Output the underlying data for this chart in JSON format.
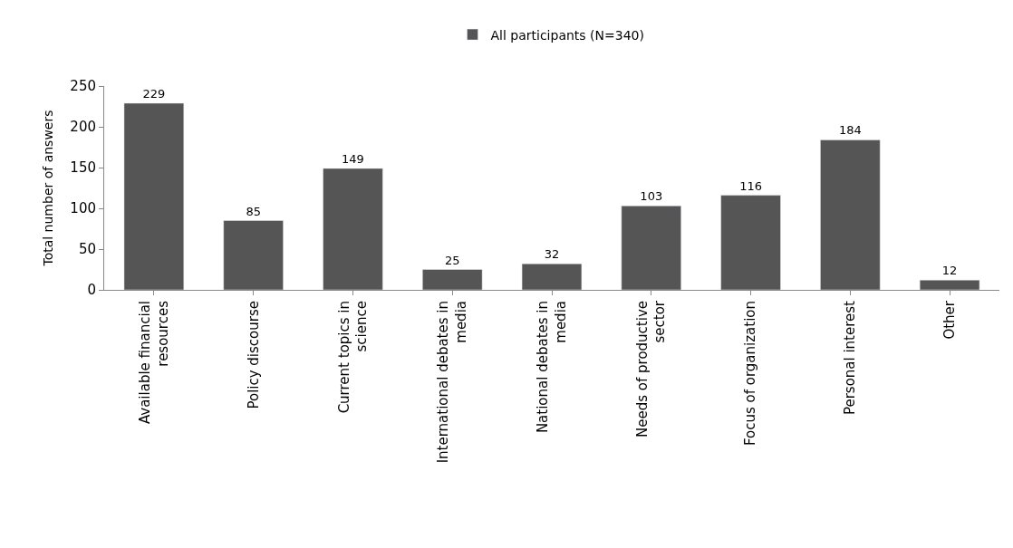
{
  "chart_data": {
    "type": "bar",
    "ylabel": "Total number of answers",
    "categories": [
      "Available financial resources",
      "Policy discourse",
      "Current topics in science",
      "International debates in media",
      "National debates in media",
      "Needs of productive sector",
      "Focus of organization",
      "Personal interest",
      "Other"
    ],
    "series": [
      {
        "name": "All participants (N=340)",
        "color": "#555555",
        "values": [
          229,
          85,
          149,
          25,
          32,
          103,
          116,
          184,
          12
        ]
      }
    ],
    "ylim": [
      0,
      250
    ],
    "yticks": [
      0,
      50,
      100,
      150,
      200,
      250
    ],
    "data_labels": true,
    "legend": "top"
  }
}
